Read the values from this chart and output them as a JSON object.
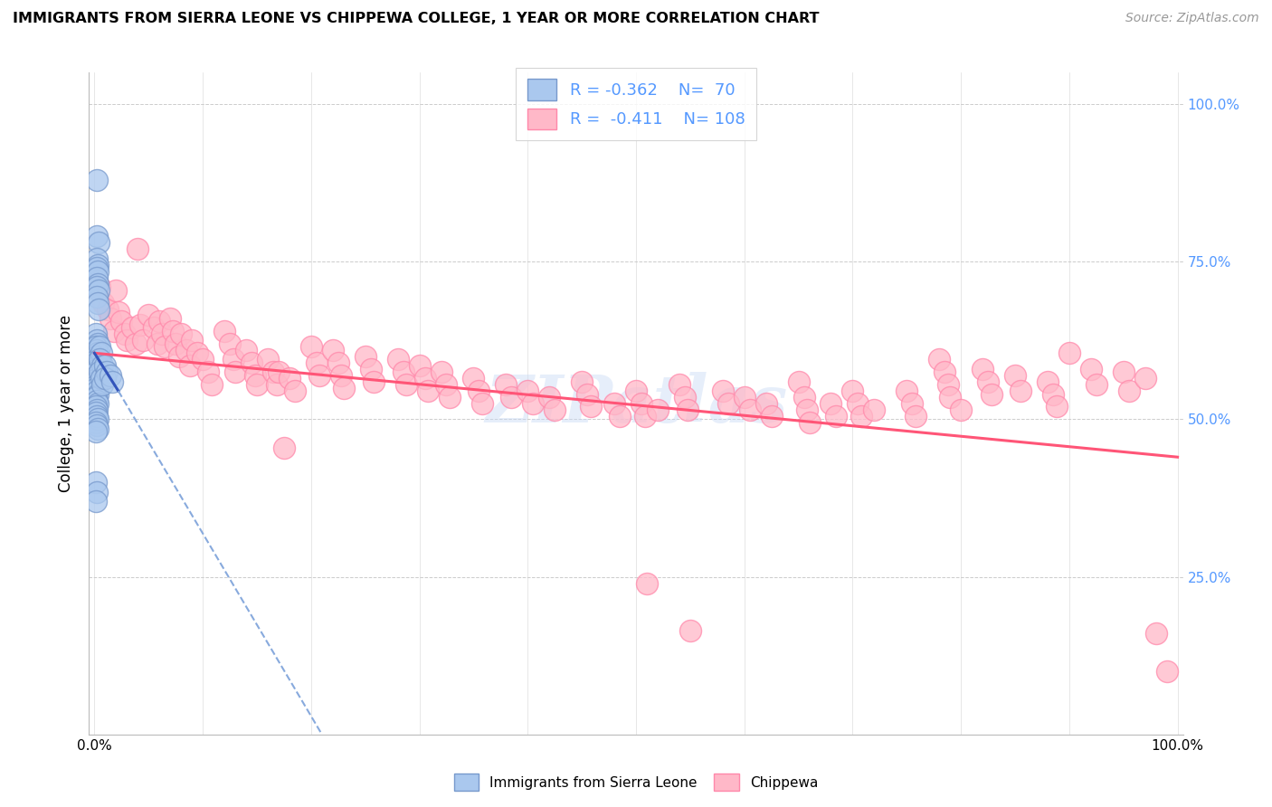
{
  "title": "IMMIGRANTS FROM SIERRA LEONE VS CHIPPEWA COLLEGE, 1 YEAR OR MORE CORRELATION CHART",
  "source": "Source: ZipAtlas.com",
  "ylabel": "College, 1 year or more",
  "blue_color_face": "#aac8ee",
  "blue_color_edge": "#7799cc",
  "pink_color_face": "#ffb8c8",
  "pink_color_edge": "#ff88aa",
  "blue_line_color": "#3355bb",
  "blue_dash_color": "#88aadd",
  "pink_line_color": "#ff5577",
  "right_tick_color": "#5599ff",
  "blue_scatter": [
    [
      0.002,
      0.88
    ],
    [
      0.002,
      0.79
    ],
    [
      0.004,
      0.78
    ],
    [
      0.002,
      0.755
    ],
    [
      0.003,
      0.745
    ],
    [
      0.002,
      0.74
    ],
    [
      0.003,
      0.735
    ],
    [
      0.002,
      0.725
    ],
    [
      0.003,
      0.715
    ],
    [
      0.002,
      0.71
    ],
    [
      0.004,
      0.705
    ],
    [
      0.002,
      0.695
    ],
    [
      0.003,
      0.685
    ],
    [
      0.004,
      0.675
    ],
    [
      0.001,
      0.635
    ],
    [
      0.002,
      0.625
    ],
    [
      0.003,
      0.62
    ],
    [
      0.001,
      0.615
    ],
    [
      0.002,
      0.61
    ],
    [
      0.003,
      0.605
    ],
    [
      0.001,
      0.6
    ],
    [
      0.002,
      0.595
    ],
    [
      0.001,
      0.59
    ],
    [
      0.003,
      0.585
    ],
    [
      0.002,
      0.58
    ],
    [
      0.001,
      0.575
    ],
    [
      0.002,
      0.57
    ],
    [
      0.003,
      0.565
    ],
    [
      0.001,
      0.56
    ],
    [
      0.002,
      0.555
    ],
    [
      0.001,
      0.55
    ],
    [
      0.002,
      0.545
    ],
    [
      0.003,
      0.54
    ],
    [
      0.001,
      0.535
    ],
    [
      0.002,
      0.53
    ],
    [
      0.003,
      0.525
    ],
    [
      0.001,
      0.52
    ],
    [
      0.002,
      0.515
    ],
    [
      0.001,
      0.51
    ],
    [
      0.002,
      0.505
    ],
    [
      0.003,
      0.5
    ],
    [
      0.001,
      0.495
    ],
    [
      0.002,
      0.49
    ],
    [
      0.003,
      0.485
    ],
    [
      0.001,
      0.48
    ],
    [
      0.005,
      0.615
    ],
    [
      0.006,
      0.605
    ],
    [
      0.005,
      0.595
    ],
    [
      0.007,
      0.585
    ],
    [
      0.005,
      0.575
    ],
    [
      0.006,
      0.565
    ],
    [
      0.007,
      0.555
    ],
    [
      0.01,
      0.585
    ],
    [
      0.011,
      0.575
    ],
    [
      0.01,
      0.565
    ],
    [
      0.015,
      0.57
    ],
    [
      0.016,
      0.56
    ],
    [
      0.001,
      0.4
    ],
    [
      0.002,
      0.385
    ],
    [
      0.001,
      0.37
    ]
  ],
  "pink_scatter": [
    [
      0.005,
      0.71
    ],
    [
      0.008,
      0.685
    ],
    [
      0.012,
      0.675
    ],
    [
      0.015,
      0.66
    ],
    [
      0.018,
      0.64
    ],
    [
      0.02,
      0.705
    ],
    [
      0.022,
      0.67
    ],
    [
      0.025,
      0.655
    ],
    [
      0.028,
      0.635
    ],
    [
      0.03,
      0.625
    ],
    [
      0.035,
      0.645
    ],
    [
      0.038,
      0.62
    ],
    [
      0.04,
      0.77
    ],
    [
      0.042,
      0.65
    ],
    [
      0.045,
      0.625
    ],
    [
      0.05,
      0.665
    ],
    [
      0.055,
      0.645
    ],
    [
      0.058,
      0.62
    ],
    [
      0.06,
      0.655
    ],
    [
      0.062,
      0.635
    ],
    [
      0.065,
      0.615
    ],
    [
      0.07,
      0.66
    ],
    [
      0.072,
      0.64
    ],
    [
      0.075,
      0.62
    ],
    [
      0.078,
      0.6
    ],
    [
      0.08,
      0.635
    ],
    [
      0.085,
      0.61
    ],
    [
      0.088,
      0.585
    ],
    [
      0.09,
      0.625
    ],
    [
      0.095,
      0.605
    ],
    [
      0.1,
      0.595
    ],
    [
      0.105,
      0.575
    ],
    [
      0.108,
      0.555
    ],
    [
      0.12,
      0.64
    ],
    [
      0.125,
      0.62
    ],
    [
      0.128,
      0.595
    ],
    [
      0.13,
      0.575
    ],
    [
      0.14,
      0.61
    ],
    [
      0.145,
      0.59
    ],
    [
      0.148,
      0.57
    ],
    [
      0.15,
      0.555
    ],
    [
      0.16,
      0.595
    ],
    [
      0.165,
      0.575
    ],
    [
      0.168,
      0.555
    ],
    [
      0.17,
      0.575
    ],
    [
      0.175,
      0.455
    ],
    [
      0.18,
      0.565
    ],
    [
      0.185,
      0.545
    ],
    [
      0.2,
      0.615
    ],
    [
      0.205,
      0.59
    ],
    [
      0.208,
      0.57
    ],
    [
      0.22,
      0.61
    ],
    [
      0.225,
      0.59
    ],
    [
      0.228,
      0.57
    ],
    [
      0.23,
      0.55
    ],
    [
      0.25,
      0.6
    ],
    [
      0.255,
      0.58
    ],
    [
      0.258,
      0.56
    ],
    [
      0.28,
      0.595
    ],
    [
      0.285,
      0.575
    ],
    [
      0.288,
      0.555
    ],
    [
      0.3,
      0.585
    ],
    [
      0.305,
      0.565
    ],
    [
      0.308,
      0.545
    ],
    [
      0.32,
      0.575
    ],
    [
      0.325,
      0.555
    ],
    [
      0.328,
      0.535
    ],
    [
      0.35,
      0.565
    ],
    [
      0.355,
      0.545
    ],
    [
      0.358,
      0.525
    ],
    [
      0.38,
      0.555
    ],
    [
      0.385,
      0.535
    ],
    [
      0.4,
      0.545
    ],
    [
      0.405,
      0.525
    ],
    [
      0.42,
      0.535
    ],
    [
      0.425,
      0.515
    ],
    [
      0.45,
      0.56
    ],
    [
      0.455,
      0.54
    ],
    [
      0.458,
      0.52
    ],
    [
      0.48,
      0.525
    ],
    [
      0.485,
      0.505
    ],
    [
      0.5,
      0.545
    ],
    [
      0.505,
      0.525
    ],
    [
      0.508,
      0.505
    ],
    [
      0.51,
      0.24
    ],
    [
      0.52,
      0.515
    ],
    [
      0.54,
      0.555
    ],
    [
      0.545,
      0.535
    ],
    [
      0.548,
      0.515
    ],
    [
      0.55,
      0.165
    ],
    [
      0.58,
      0.545
    ],
    [
      0.585,
      0.525
    ],
    [
      0.6,
      0.535
    ],
    [
      0.605,
      0.515
    ],
    [
      0.62,
      0.525
    ],
    [
      0.625,
      0.505
    ],
    [
      0.65,
      0.56
    ],
    [
      0.655,
      0.535
    ],
    [
      0.658,
      0.515
    ],
    [
      0.66,
      0.495
    ],
    [
      0.68,
      0.525
    ],
    [
      0.685,
      0.505
    ],
    [
      0.7,
      0.545
    ],
    [
      0.705,
      0.525
    ],
    [
      0.708,
      0.505
    ],
    [
      0.72,
      0.515
    ],
    [
      0.75,
      0.545
    ],
    [
      0.755,
      0.525
    ],
    [
      0.758,
      0.505
    ],
    [
      0.78,
      0.595
    ],
    [
      0.785,
      0.575
    ],
    [
      0.788,
      0.555
    ],
    [
      0.79,
      0.535
    ],
    [
      0.8,
      0.515
    ],
    [
      0.82,
      0.58
    ],
    [
      0.825,
      0.56
    ],
    [
      0.828,
      0.54
    ],
    [
      0.85,
      0.57
    ],
    [
      0.855,
      0.545
    ],
    [
      0.88,
      0.56
    ],
    [
      0.885,
      0.54
    ],
    [
      0.888,
      0.52
    ],
    [
      0.9,
      0.605
    ],
    [
      0.92,
      0.58
    ],
    [
      0.925,
      0.555
    ],
    [
      0.95,
      0.575
    ],
    [
      0.955,
      0.545
    ],
    [
      0.97,
      0.565
    ],
    [
      0.98,
      0.16
    ],
    [
      0.99,
      0.1
    ]
  ],
  "blue_trendline_solid": [
    [
      0.0,
      0.605
    ],
    [
      0.022,
      0.545
    ]
  ],
  "blue_trendline_dashed": [
    [
      0.022,
      0.545
    ],
    [
      0.21,
      0.0
    ]
  ],
  "pink_trendline": [
    [
      0.0,
      0.605
    ],
    [
      1.0,
      0.44
    ]
  ],
  "watermark": "ZIPatlas",
  "xlim": [
    -0.005,
    1.005
  ],
  "ylim": [
    0.0,
    1.05
  ],
  "figsize": [
    14.06,
    8.92
  ],
  "dpi": 100
}
